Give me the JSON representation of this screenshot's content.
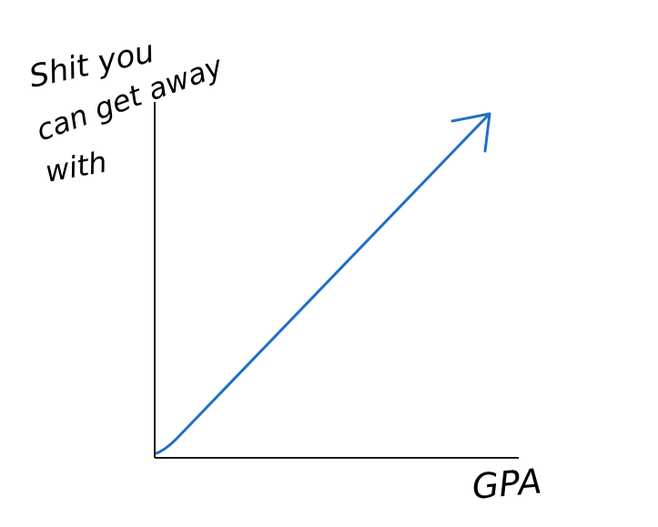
{
  "chart_data": {
    "type": "line",
    "title": "",
    "xlabel": "GPA",
    "ylabel_lines": [
      "Shit you",
      "can get away",
      "with"
    ],
    "x": [
      0,
      1
    ],
    "y": [
      0,
      1
    ],
    "arrow_on_line": true,
    "grid": false,
    "xticks": false,
    "yticks": false,
    "colors": {
      "line": "#1f6fc7",
      "axes": "#1a1a1a",
      "text": "#1f6fc7"
    }
  }
}
